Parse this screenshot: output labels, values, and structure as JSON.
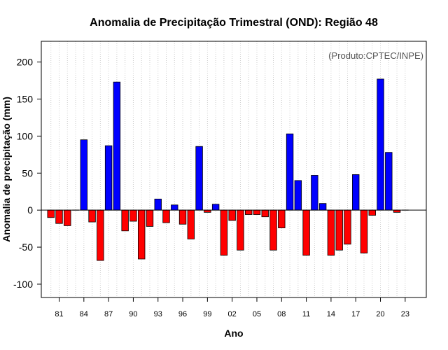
{
  "chart_data": {
    "type": "bar",
    "title": "Anomalia de Precipitação Trimestral (OND): Região 48",
    "xlabel": "Ano",
    "ylabel": "Anomalia de precipitação (mm)",
    "credit": "(Produto:CPTEC/INPE)",
    "ylim": [
      -118,
      228
    ],
    "yticks": [
      -100,
      -50,
      0,
      50,
      100,
      150,
      200
    ],
    "xtick_labels": [
      "81",
      "84",
      "87",
      "90",
      "93",
      "96",
      "99",
      "02",
      "05",
      "08",
      "11",
      "14",
      "17",
      "20",
      "23"
    ],
    "xtick_years": [
      1981,
      1984,
      1987,
      1990,
      1993,
      1996,
      1999,
      2002,
      2005,
      2008,
      2011,
      2014,
      2017,
      2020,
      2023
    ],
    "grid": true,
    "colors": {
      "positive": "#0000ff",
      "negative": "#ff0000",
      "outline": "#000000",
      "grid": "#cccccc"
    },
    "series": [
      {
        "name": "Anomalia",
        "years": [
          1980,
          1981,
          1982,
          1983,
          1984,
          1985,
          1986,
          1987,
          1988,
          1989,
          1990,
          1991,
          1992,
          1993,
          1994,
          1995,
          1996,
          1997,
          1998,
          1999,
          2000,
          2001,
          2002,
          2003,
          2004,
          2005,
          2006,
          2007,
          2008,
          2009,
          2010,
          2011,
          2012,
          2013,
          2014,
          2015,
          2016,
          2017,
          2018,
          2019,
          2020,
          2021,
          2022,
          2023
        ],
        "values": [
          -10,
          -18,
          -21,
          0,
          95,
          -16,
          -68,
          87,
          173,
          -28,
          -15,
          -66,
          -22,
          15,
          -17,
          7,
          -19,
          -39,
          86,
          -3,
          8,
          -61,
          -14,
          -54,
          -6,
          -6,
          -9,
          -54,
          -24,
          103,
          40,
          -61,
          47,
          9,
          -61,
          -54,
          -46,
          48,
          -58,
          -7,
          177,
          78,
          -3,
          0
        ]
      }
    ]
  }
}
